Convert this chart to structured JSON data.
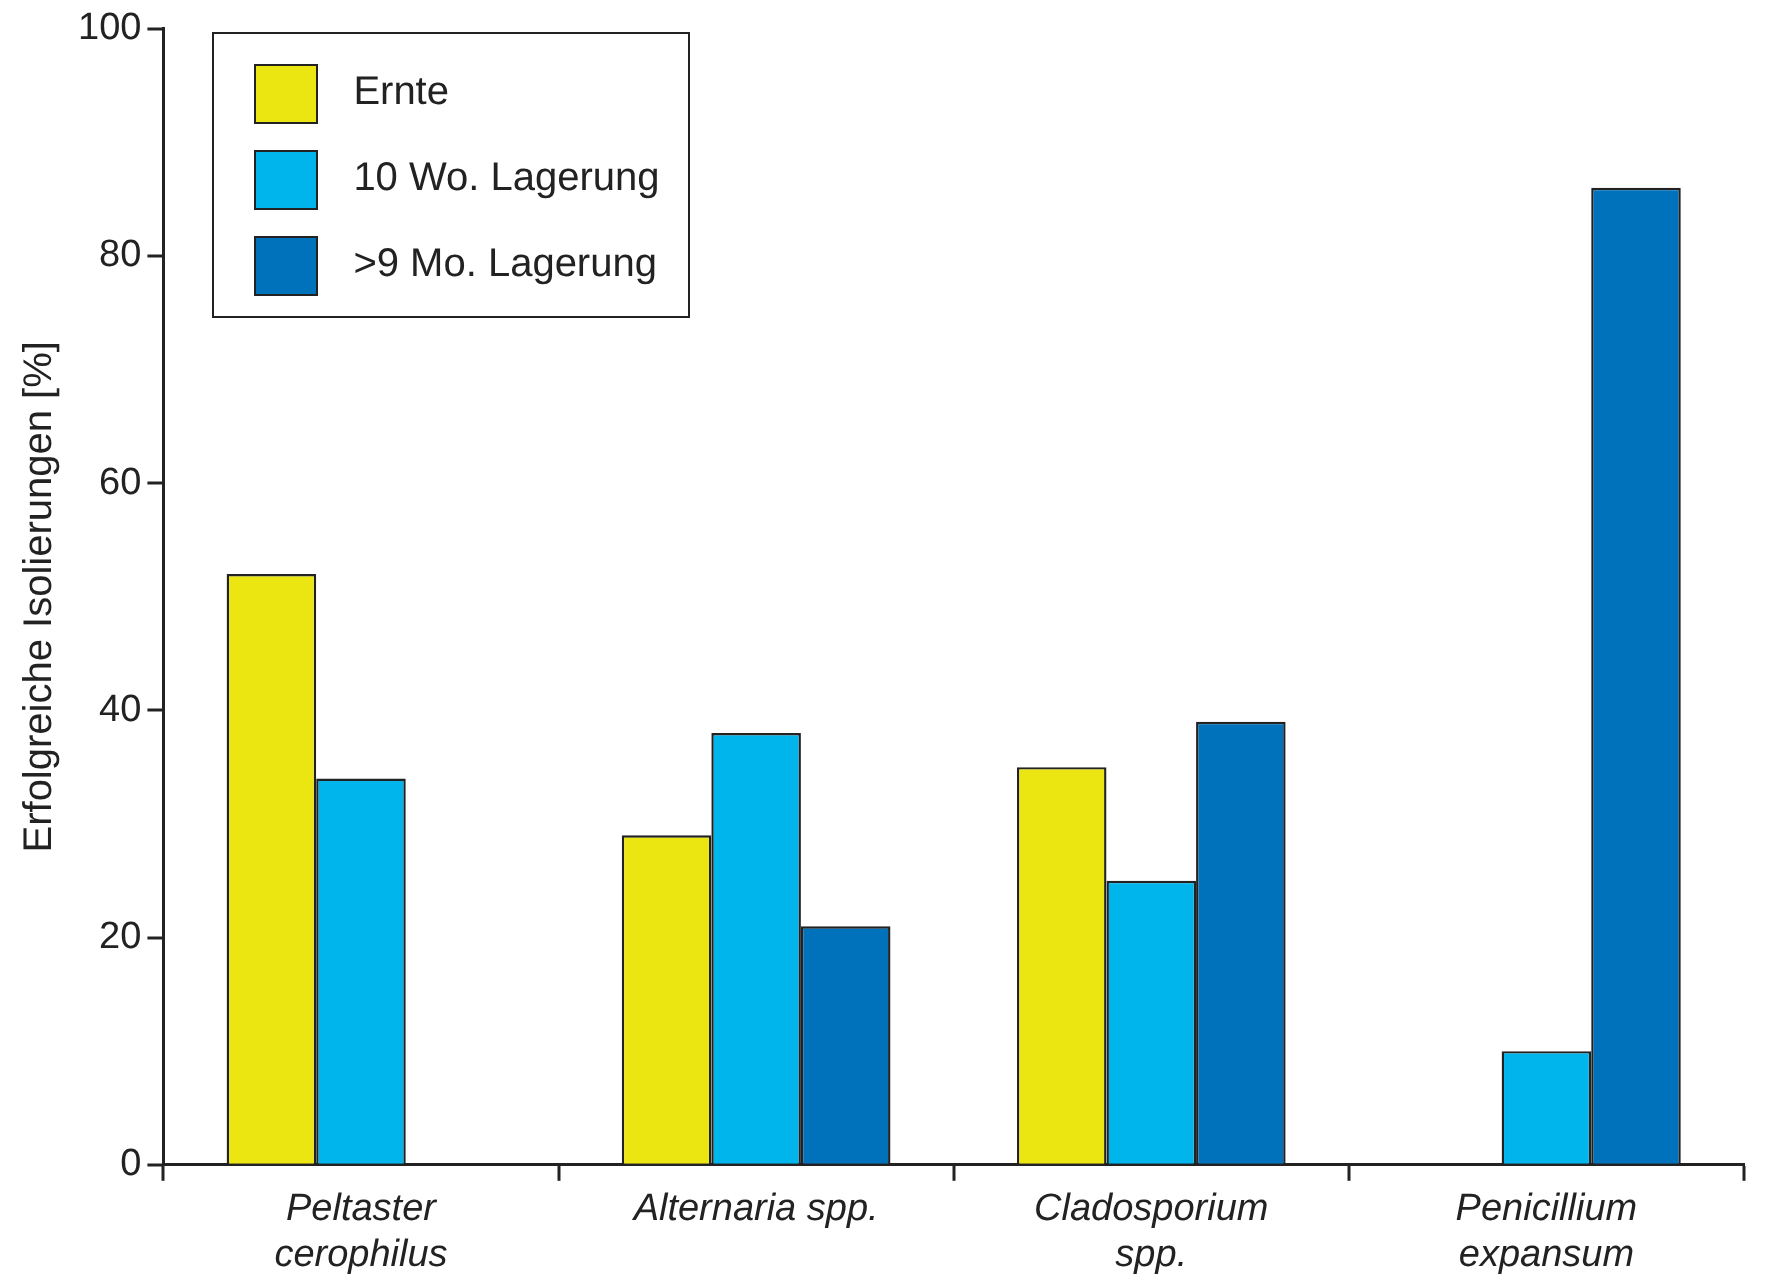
{
  "chart_data": {
    "type": "bar",
    "ylabel": "Erfolgreiche Isolierungen [%]",
    "categories": [
      "Peltaster cerophilus",
      "Alternaria spp.",
      "Cladosporium spp.",
      "Penicillium expansum"
    ],
    "series": [
      {
        "name": "Ernte",
        "color": "#ebe612",
        "values": [
          52,
          29,
          35,
          null
        ]
      },
      {
        "name": "10 Wo. Lagerung",
        "color": "#00b4ec",
        "values": [
          34,
          38,
          25,
          10
        ]
      },
      {
        "name": ">9 Mo. Lagerung",
        "color": "#0072bb",
        "values": [
          null,
          21,
          39,
          86
        ]
      }
    ],
    "ylim": [
      0,
      100
    ],
    "yticks": [
      0,
      20,
      40,
      60,
      80,
      100
    ],
    "grid": false,
    "legend": "top left"
  }
}
